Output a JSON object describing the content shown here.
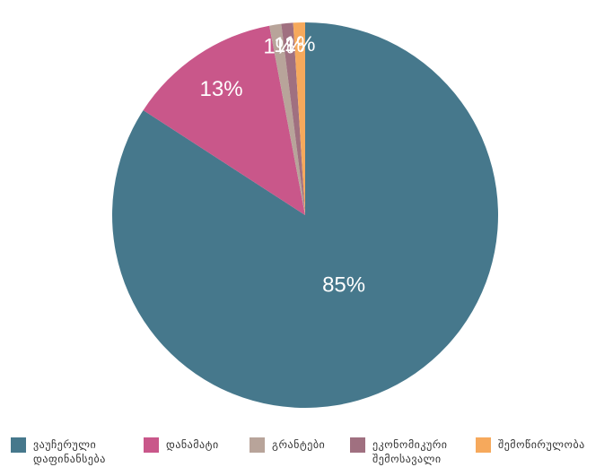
{
  "chart_data": {
    "type": "pie",
    "categories": [
      "ვაუჩერული დაფინანსება",
      "დანამატი",
      "გრანტები",
      "ეკონომიკური შემოსავალი",
      "შემოწირულობა"
    ],
    "values": [
      85,
      13,
      1,
      1,
      1
    ],
    "value_labels": [
      "85%",
      "13%",
      "1%",
      "1%",
      "1%"
    ],
    "colors": [
      "#46788c",
      "#c9578a",
      "#b8a49a",
      "#a07080",
      "#f6a95c"
    ],
    "legend": "bottom"
  }
}
